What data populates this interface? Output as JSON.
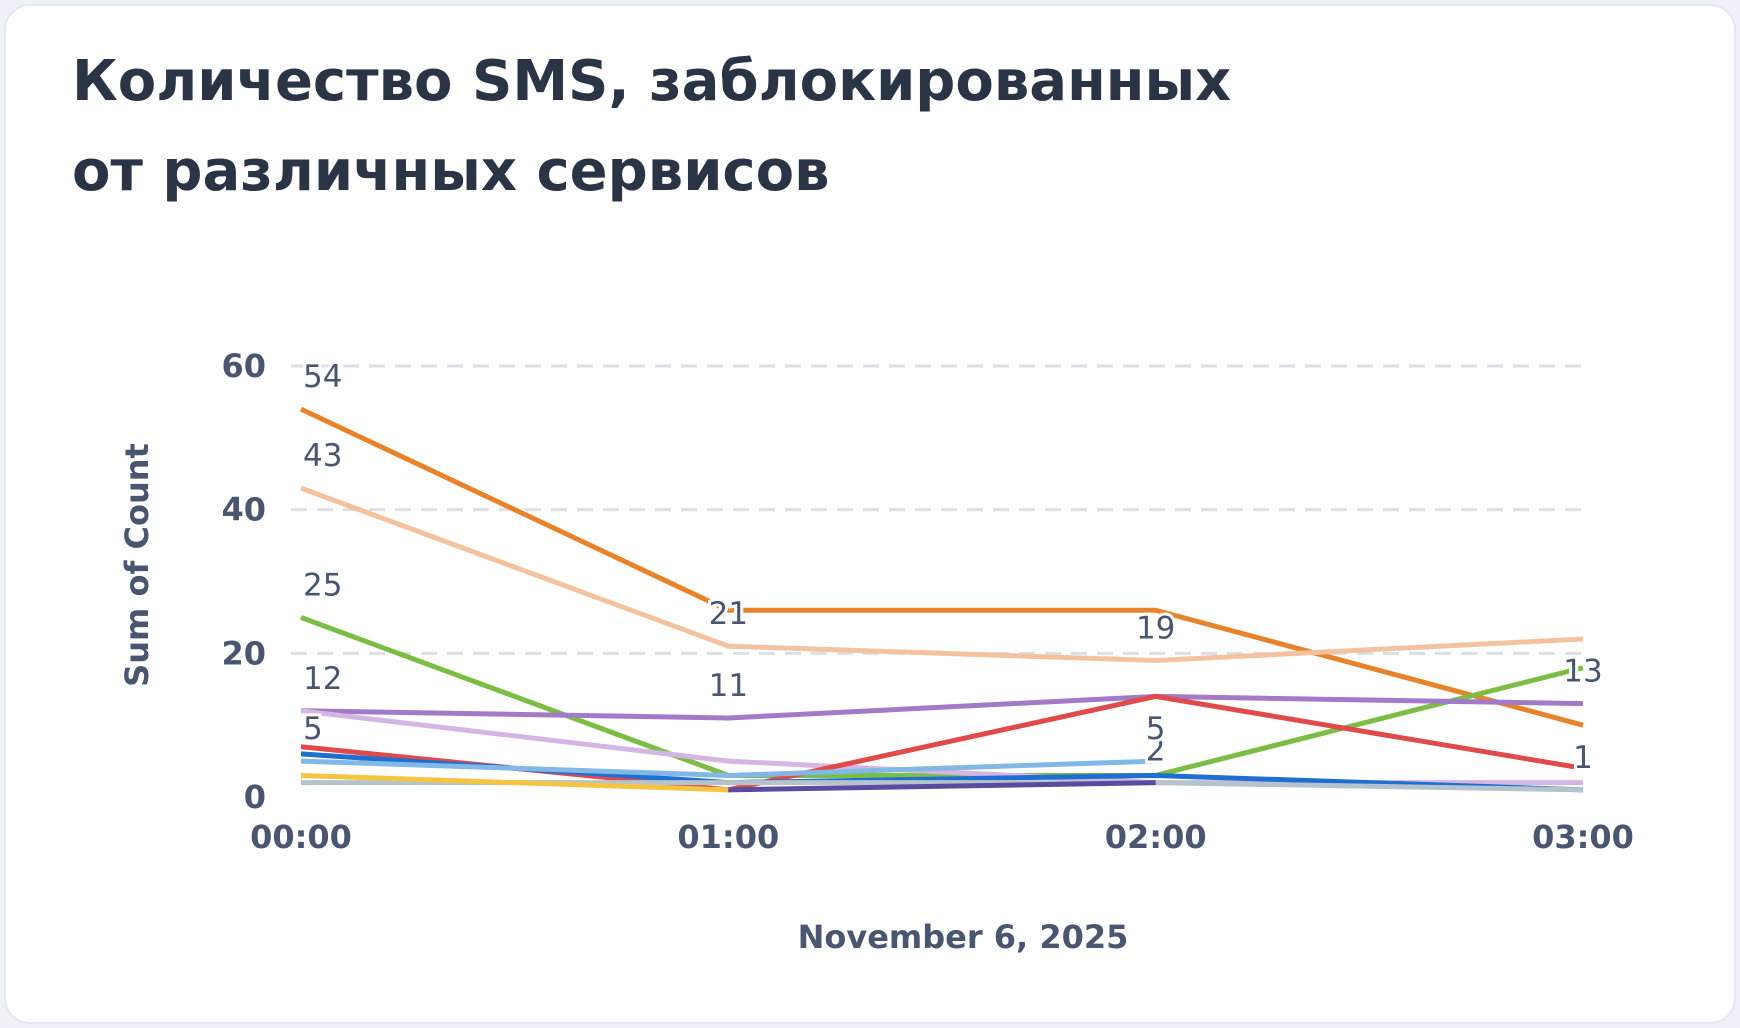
{
  "chart_data": {
    "type": "line",
    "title_lines": [
      "Количество SMS, заблокированных",
      "от различных сервисов"
    ],
    "x_label": "November 6, 2025",
    "y_label": "Sum of Count",
    "categories": [
      "00:00",
      "01:00",
      "02:00",
      "03:00"
    ],
    "ylim": [
      0,
      60
    ],
    "yticks": [
      0,
      20,
      40,
      60
    ],
    "grid": true,
    "series": [
      {
        "color": "#e8832c",
        "values": [
          54,
          26,
          26,
          10
        ],
        "value_labels": [
          "54",
          null,
          null,
          null
        ]
      },
      {
        "color": "#f3c3a0",
        "values": [
          43,
          21,
          19,
          22
        ],
        "value_labels": [
          "43",
          "21",
          "19",
          null
        ]
      },
      {
        "color": "#7cbd45",
        "values": [
          25,
          3,
          3,
          18
        ],
        "value_labels": [
          "25",
          null,
          null,
          null
        ]
      },
      {
        "color": "#a27ac8",
        "values": [
          12,
          11,
          14,
          13
        ],
        "value_labels": [
          "12",
          "11",
          null,
          "13"
        ]
      },
      {
        "color": "#d5b5e3",
        "values": [
          12,
          5,
          2,
          2
        ],
        "value_labels": [
          null,
          null,
          "2",
          null
        ]
      },
      {
        "color": "#e14a4a",
        "values": [
          7,
          1,
          14,
          4
        ],
        "value_labels": [
          null,
          null,
          null,
          null
        ]
      },
      {
        "color": "#1f6fd1",
        "values": [
          6,
          2,
          3,
          1
        ],
        "value_labels": [
          null,
          null,
          null,
          null
        ]
      },
      {
        "color": "#82b8e6",
        "values": [
          5,
          3,
          5,
          null
        ],
        "value_labels": [
          "5",
          null,
          "5",
          null
        ]
      },
      {
        "color": "#b5c4cc",
        "values": [
          2,
          2,
          2,
          1
        ],
        "value_labels": [
          null,
          null,
          null,
          "1"
        ]
      },
      {
        "color": "#f5c542",
        "values": [
          3,
          1,
          null,
          null
        ],
        "value_labels": [
          null,
          null,
          null,
          null
        ]
      },
      {
        "color": "#5a4aa0",
        "values": [
          null,
          1,
          2,
          null
        ],
        "value_labels": [
          null,
          null,
          null,
          null
        ]
      }
    ]
  }
}
